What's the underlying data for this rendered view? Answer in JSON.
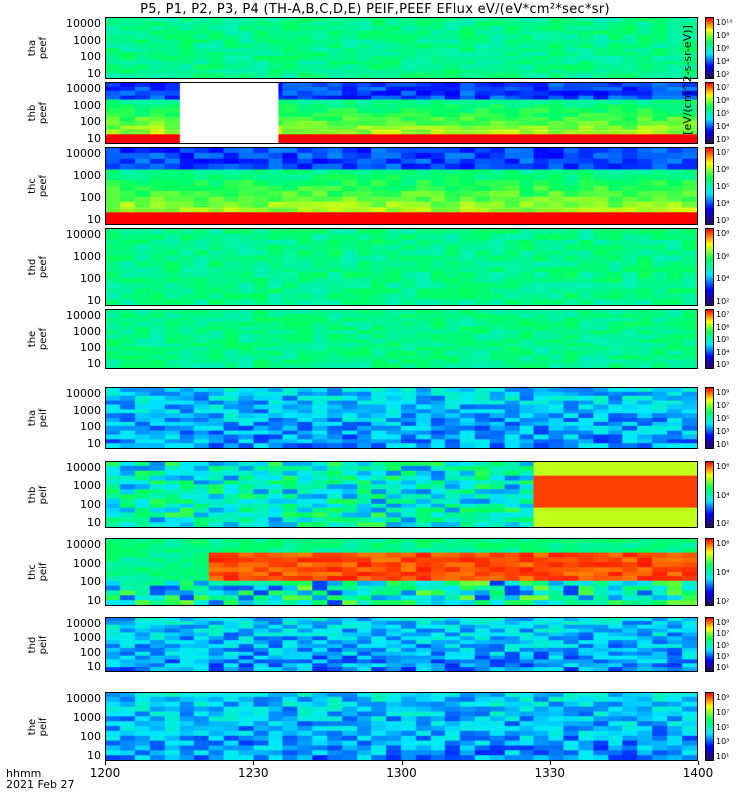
{
  "title": "P5, P1, P2, P3, P4 (TH-A,B,C,D,E) PEIF,PEEF EFlux eV/(eV*cm²*sec*sr)",
  "x_axis": {
    "unit_label": "hhmm",
    "date_label": "2021 Feb 27",
    "ticks": [
      "1200",
      "1230",
      "1300",
      "1330",
      "1400"
    ]
  },
  "colorbar_label": "[eV/(cm^2-s-sr-eV)]",
  "colormap": [
    "#2a0a55",
    "#0000ff",
    "#00e8ff",
    "#00ff60",
    "#ffff00",
    "#ff0000"
  ],
  "chart_data": {
    "type": "heatmap",
    "x_range": [
      "12:00",
      "14:00"
    ],
    "y_scale": "log",
    "y_ticks": [
      "10000",
      "1000",
      "100",
      "10"
    ],
    "panels": [
      {
        "label": "tha\npeef",
        "cbar_ticks": [
          "10¹⁰",
          "10⁸",
          "10⁶",
          "10⁴",
          "10²"
        ],
        "level": 0.55,
        "gap": null
      },
      {
        "label": "thb\npeef",
        "cbar_ticks": [
          "10⁷",
          "10⁶",
          "10⁵",
          "10⁴",
          "10³"
        ],
        "level": 0.5,
        "gap": [
          "12:15",
          "12:35"
        ]
      },
      {
        "label": "thc\npeef",
        "cbar_ticks": [
          "10⁷",
          "10⁶",
          "10⁵",
          "10⁴",
          "10³"
        ],
        "level": 0.6,
        "gap": null
      },
      {
        "label": "thd\npeef",
        "cbar_ticks": [
          "10⁸",
          "10⁶",
          "10⁴",
          "10²"
        ],
        "level": 0.55,
        "gap": null
      },
      {
        "label": "the\npeef",
        "cbar_ticks": [
          "10⁷",
          "10⁶",
          "10⁵",
          "10⁴",
          "10³"
        ],
        "level": 0.55,
        "gap": null
      },
      {
        "label": "tha\npeif",
        "cbar_ticks": [
          "10⁹",
          "10⁷",
          "10⁵",
          "10³",
          "10¹"
        ],
        "level": 0.4,
        "gap": null
      },
      {
        "label": "thb\npeif",
        "cbar_ticks": [
          "10⁶",
          "10⁴",
          "10²"
        ],
        "level": 0.35,
        "gap": null
      },
      {
        "label": "thc\npeif",
        "cbar_ticks": [
          "10⁶",
          "10⁴",
          "10²"
        ],
        "level": 0.55,
        "gap": null
      },
      {
        "label": "thd\npeif",
        "cbar_ticks": [
          "10⁹",
          "10⁷",
          "10⁵",
          "10³",
          "10¹"
        ],
        "level": 0.4,
        "gap": null
      },
      {
        "label": "the\npeif",
        "cbar_ticks": [
          "10⁹",
          "10⁷",
          "10⁵",
          "10³",
          "10¹"
        ],
        "level": 0.4,
        "gap": null
      }
    ]
  }
}
